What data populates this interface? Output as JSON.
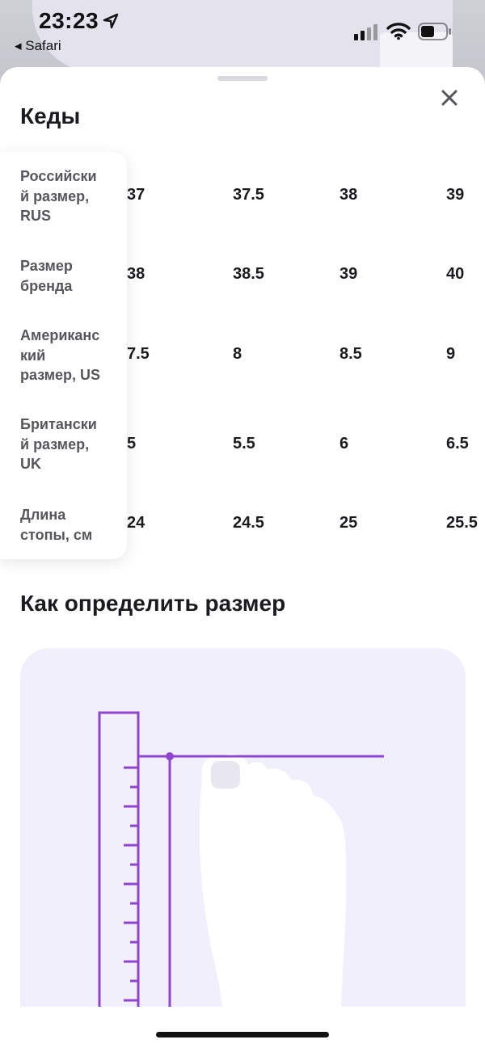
{
  "status_bar": {
    "time": "23:23",
    "back_app": "◂ Safari",
    "icons": [
      "location-arrow-icon",
      "cellular-signal-icon",
      "wifi-icon",
      "battery-icon"
    ]
  },
  "sheet": {
    "title": "Кеды",
    "close_icon": "close-icon"
  },
  "size_table": {
    "rows": [
      {
        "label": "Российский размер, RUS",
        "label_lines": [
          "Российски",
          "й размер,",
          "RUS"
        ],
        "values": [
          "37",
          "37.5",
          "38",
          "39"
        ]
      },
      {
        "label": "Размер бренда",
        "label_lines": [
          "Размер",
          "бренда"
        ],
        "values": [
          "38",
          "38.5",
          "39",
          "40"
        ]
      },
      {
        "label": "Американский размер, US",
        "label_lines": [
          "Американс",
          "кий",
          "размер, US"
        ],
        "values": [
          "7.5",
          "8",
          "8.5",
          "9"
        ]
      },
      {
        "label": "Британский размер, UK",
        "label_lines": [
          "Британски",
          "й размер,",
          "UK"
        ],
        "values": [
          "5",
          "5.5",
          "6",
          "6.5"
        ]
      },
      {
        "label": "Длина стопы, см",
        "label_lines": [
          "Длина",
          "стопы, см"
        ],
        "values": [
          "24",
          "24.5",
          "25",
          "25.5"
        ]
      }
    ]
  },
  "how_to": {
    "title": "Как определить размер",
    "illustration": "foot-measurement-illustration"
  },
  "colors": {
    "accent_purple": "#8e44cf",
    "illustration_bg": "#f1effb",
    "label_gray": "#56565c"
  }
}
